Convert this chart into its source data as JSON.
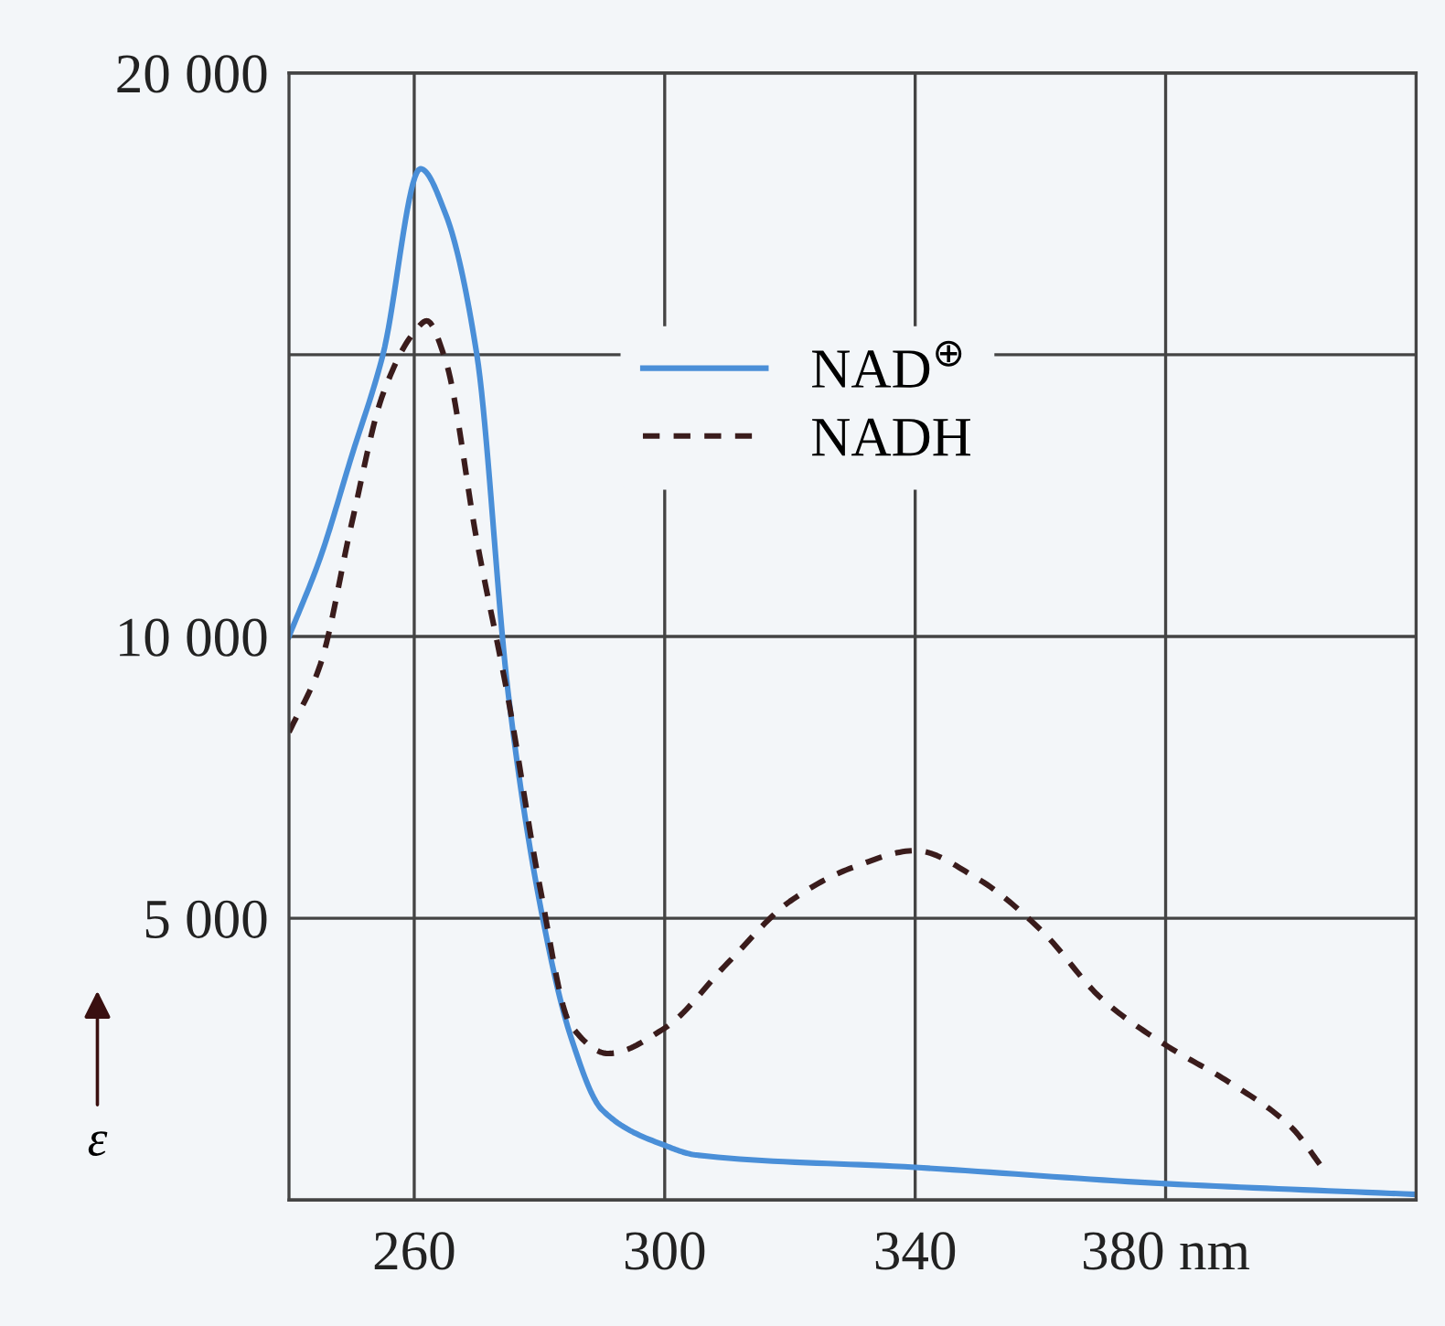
{
  "chart_data": {
    "type": "line",
    "ylabel": "ε",
    "series": [
      {
        "name": "NAD$^{⊕}$",
        "color": "#4a8fd8",
        "line_style": "solid",
        "x": [
          240,
          245,
          250,
          255,
          261,
          265,
          270,
          275,
          280,
          285,
          290,
          300,
          305,
          340,
          380,
          420
        ],
        "values": [
          10000,
          11400,
          13200,
          15000,
          18300,
          17500,
          15000,
          9000,
          5300,
          2900,
          1600,
          970,
          800,
          580,
          290,
          100
        ]
      },
      {
        "name": "NADH",
        "color": "#3a1c1c",
        "line_style": "dashed",
        "x": [
          240,
          245,
          250,
          255,
          260,
          262,
          265,
          270,
          275,
          280,
          285,
          291,
          300,
          310,
          320,
          330,
          340,
          350,
          360,
          370,
          380,
          390,
          400,
          405
        ],
        "values": [
          8300,
          9500,
          12000,
          14300,
          15400,
          15600,
          14900,
          11700,
          8900,
          5600,
          3100,
          2600,
          3050,
          4200,
          5300,
          5900,
          6200,
          5700,
          4800,
          3550,
          2750,
          2100,
          1300,
          580
        ]
      }
    ],
    "xlim": [
      240,
      420
    ],
    "xticks": [
      260,
      300,
      340,
      {
        "value": 380,
        "label": "380 nm"
      }
    ],
    "ylim": [
      0,
      20000
    ],
    "yticks": [
      {
        "value": 0,
        "label": null
      },
      {
        "value": 5000,
        "label": "5 000"
      },
      {
        "value": 10000,
        "label": "10 000"
      },
      {
        "value": 15000,
        "label": null
      },
      {
        "value": 20000,
        "label": "20 000"
      }
    ],
    "grid": true,
    "legend": "top"
  }
}
